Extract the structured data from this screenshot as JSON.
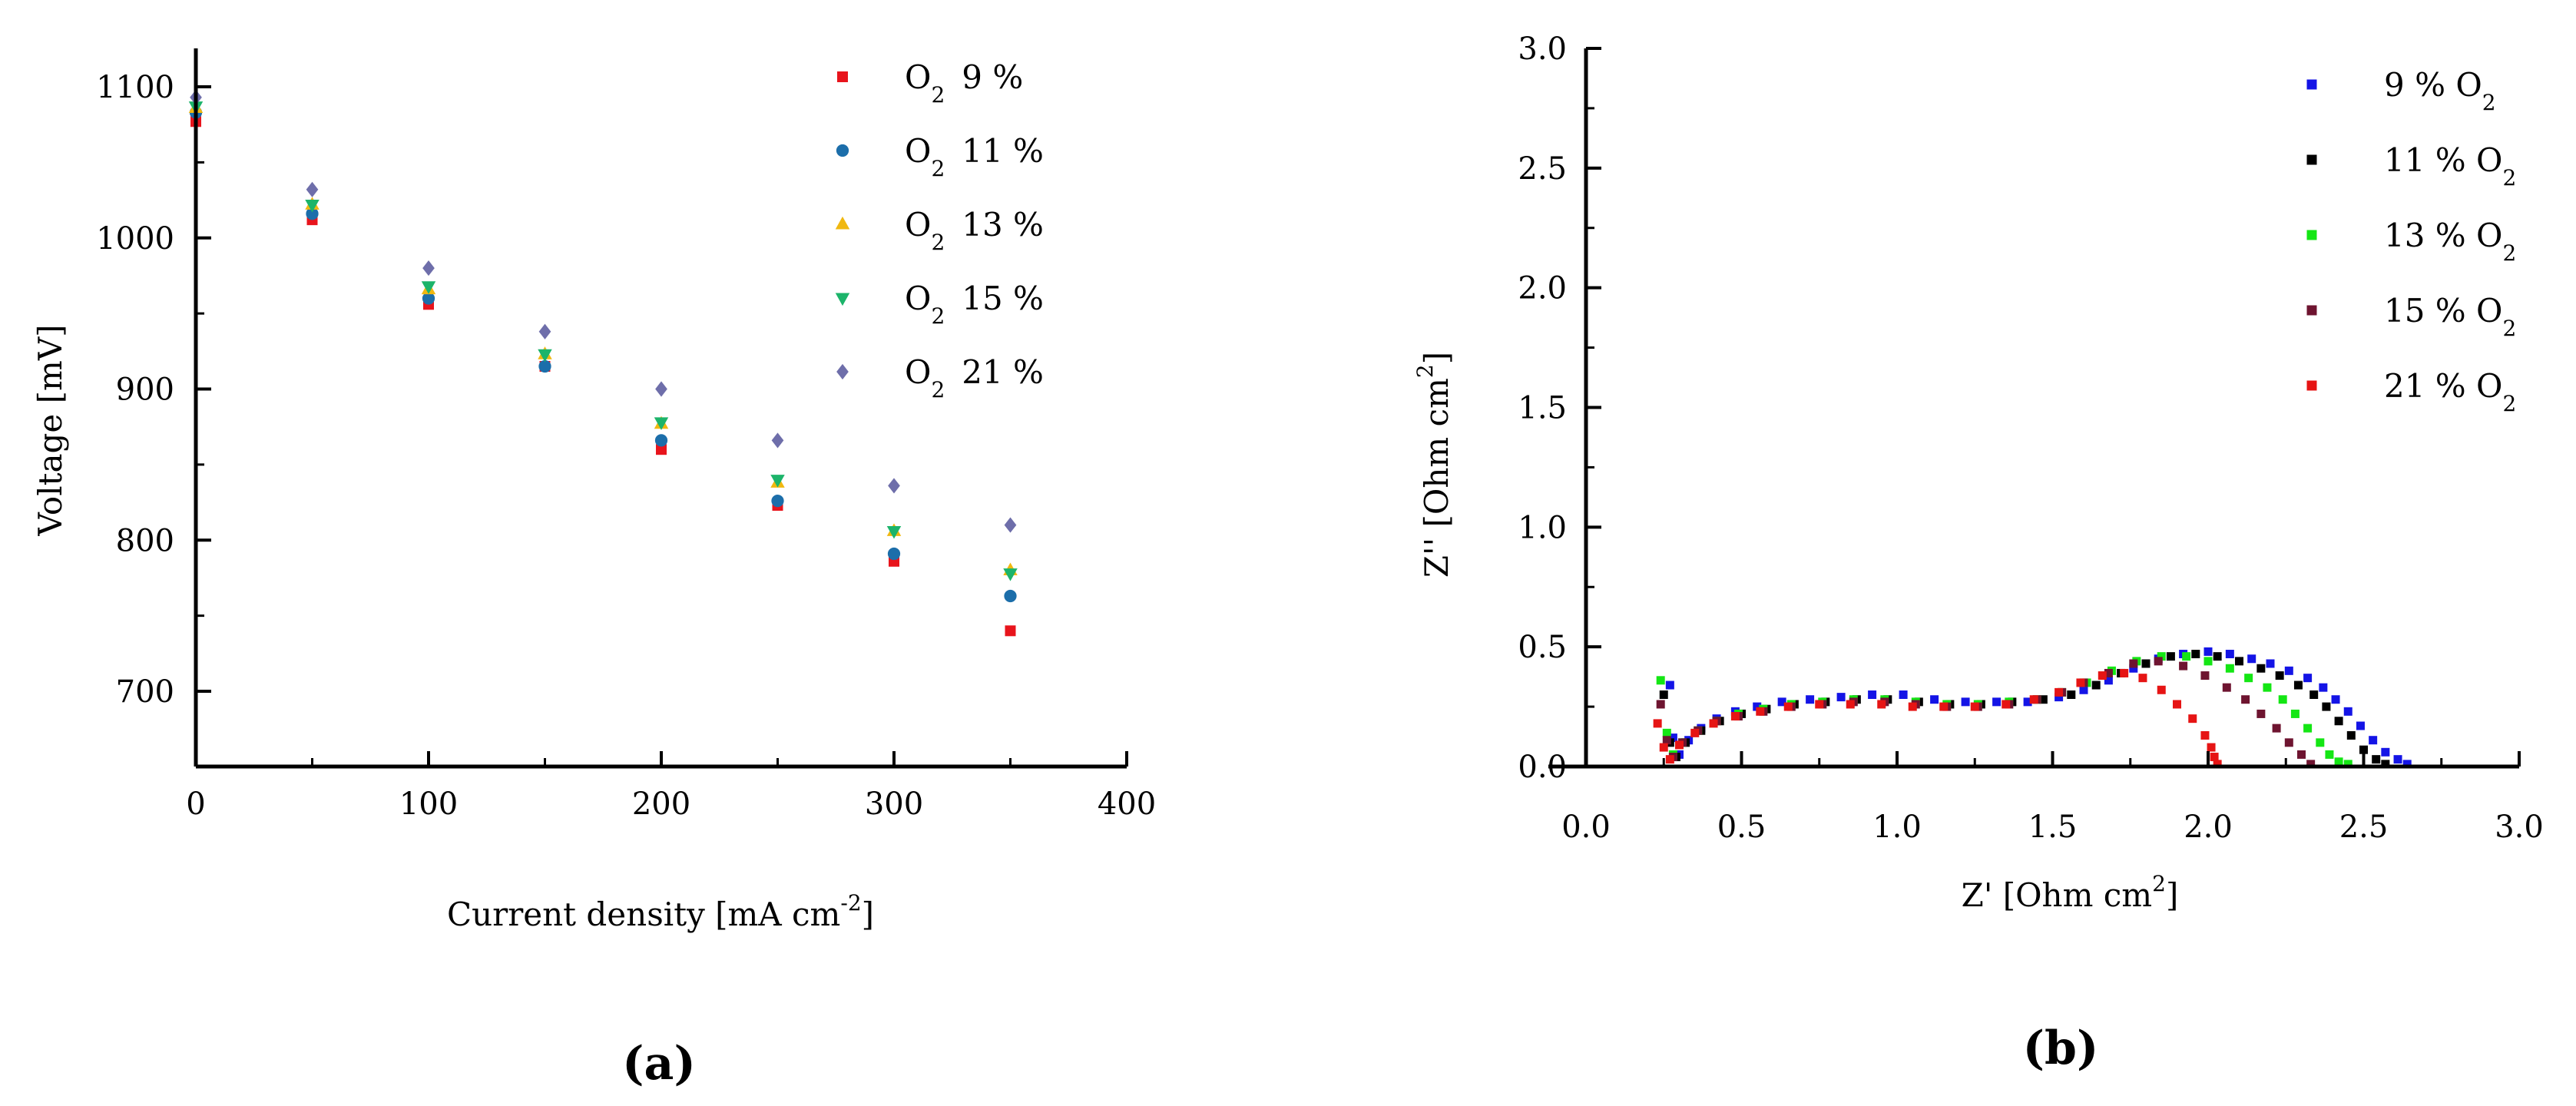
{
  "chart_data": [
    {
      "type": "scatter",
      "panel_label": "(a)",
      "xlabel": "Current density [mA cm",
      "xlabel_sup": "-2",
      "xlabel_close": "]",
      "ylabel": "Voltage [mV]",
      "xlim": [
        0,
        400
      ],
      "ylim": [
        650,
        1125
      ],
      "x_ticks": [
        0,
        100,
        200,
        300,
        400
      ],
      "x_tick_labels": [
        "0",
        "100",
        "200",
        "300",
        "400"
      ],
      "y_ticks": [
        700,
        800,
        900,
        1000,
        1100
      ],
      "y_tick_labels": [
        "700",
        "800",
        "900",
        "1000",
        "1100"
      ],
      "legend_position": "top-right",
      "x": [
        0,
        50,
        100,
        150,
        200,
        250,
        300,
        350
      ],
      "series": [
        {
          "name": "9 %",
          "label_prefix": "O",
          "label_sub": "2",
          "marker": "square",
          "color": "#e8141c",
          "values": [
            1077,
            1012,
            956,
            915,
            860,
            823,
            786,
            740
          ]
        },
        {
          "name": "11 %",
          "label_prefix": "O",
          "label_sub": "2",
          "marker": "circle",
          "color": "#1c6eaa",
          "values": [
            1083,
            1016,
            960,
            915,
            866,
            826,
            791,
            763
          ]
        },
        {
          "name": "13 %",
          "label_prefix": "O",
          "label_sub": "2",
          "marker": "triangle-up",
          "color": "#f0b810",
          "values": [
            1086,
            1022,
            966,
            923,
            877,
            838,
            806,
            780
          ]
        },
        {
          "name": "15 %",
          "label_prefix": "O",
          "label_sub": "2",
          "marker": "triangle-down",
          "color": "#1cb46a",
          "values": [
            1087,
            1022,
            968,
            923,
            878,
            840,
            806,
            778
          ]
        },
        {
          "name": "21 %",
          "label_prefix": "O",
          "label_sub": "2",
          "marker": "diamond",
          "color": "#6e6eaa",
          "values": [
            1093,
            1032,
            980,
            938,
            900,
            866,
            836,
            810
          ]
        }
      ]
    },
    {
      "type": "scatter",
      "panel_label": "(b)",
      "xlabel": "Z' [Ohm cm",
      "xlabel_sup": "2",
      "xlabel_close": "]",
      "ylabel": "Z'' [Ohm cm",
      "ylabel_sup": "2",
      "ylabel_close": "]",
      "xlim": [
        -0.1,
        3.0
      ],
      "ylim": [
        0.0,
        3.0
      ],
      "x_ticks": [
        0.0,
        0.5,
        1.0,
        1.5,
        2.0,
        2.5,
        3.0
      ],
      "x_tick_labels": [
        "0.0",
        "0.5",
        "1.0",
        "1.5",
        "2.0",
        "2.5",
        "3.0"
      ],
      "y_ticks": [
        0.0,
        0.5,
        1.0,
        1.5,
        2.0,
        2.5,
        3.0
      ],
      "y_tick_labels": [
        "0.0",
        "0.5",
        "1.0",
        "1.5",
        "2.0",
        "2.5",
        "3.0"
      ],
      "legend_position": "top-right",
      "series": [
        {
          "name": "9 % O",
          "label_sub": "2",
          "marker": "square",
          "color": "#1414e6",
          "points": [
            [
              0.27,
              0.34
            ],
            [
              0.28,
              0.12
            ],
            [
              0.3,
              0.05
            ],
            [
              0.33,
              0.11
            ],
            [
              0.37,
              0.16
            ],
            [
              0.42,
              0.2
            ],
            [
              0.48,
              0.23
            ],
            [
              0.55,
              0.25
            ],
            [
              0.63,
              0.27
            ],
            [
              0.72,
              0.28
            ],
            [
              0.82,
              0.29
            ],
            [
              0.92,
              0.3
            ],
            [
              1.02,
              0.3
            ],
            [
              1.12,
              0.28
            ],
            [
              1.22,
              0.27
            ],
            [
              1.32,
              0.27
            ],
            [
              1.42,
              0.27
            ],
            [
              1.52,
              0.29
            ],
            [
              1.6,
              0.32
            ],
            [
              1.68,
              0.36
            ],
            [
              1.76,
              0.41
            ],
            [
              1.84,
              0.45
            ],
            [
              1.92,
              0.47
            ],
            [
              2.0,
              0.48
            ],
            [
              2.07,
              0.47
            ],
            [
              2.14,
              0.45
            ],
            [
              2.2,
              0.43
            ],
            [
              2.26,
              0.4
            ],
            [
              2.32,
              0.37
            ],
            [
              2.37,
              0.33
            ],
            [
              2.41,
              0.28
            ],
            [
              2.45,
              0.23
            ],
            [
              2.49,
              0.17
            ],
            [
              2.53,
              0.11
            ],
            [
              2.57,
              0.06
            ],
            [
              2.61,
              0.03
            ],
            [
              2.64,
              0.01
            ]
          ]
        },
        {
          "name": "11 % O",
          "label_sub": "2",
          "marker": "square",
          "color": "#000000",
          "points": [
            [
              0.25,
              0.3
            ],
            [
              0.27,
              0.1
            ],
            [
              0.29,
              0.04
            ],
            [
              0.32,
              0.1
            ],
            [
              0.37,
              0.15
            ],
            [
              0.43,
              0.19
            ],
            [
              0.5,
              0.22
            ],
            [
              0.58,
              0.24
            ],
            [
              0.67,
              0.26
            ],
            [
              0.77,
              0.27
            ],
            [
              0.87,
              0.28
            ],
            [
              0.97,
              0.28
            ],
            [
              1.07,
              0.27
            ],
            [
              1.17,
              0.26
            ],
            [
              1.27,
              0.26
            ],
            [
              1.37,
              0.27
            ],
            [
              1.47,
              0.28
            ],
            [
              1.56,
              0.3
            ],
            [
              1.64,
              0.34
            ],
            [
              1.72,
              0.39
            ],
            [
              1.8,
              0.43
            ],
            [
              1.88,
              0.46
            ],
            [
              1.96,
              0.47
            ],
            [
              2.03,
              0.46
            ],
            [
              2.1,
              0.44
            ],
            [
              2.17,
              0.41
            ],
            [
              2.23,
              0.38
            ],
            [
              2.29,
              0.34
            ],
            [
              2.34,
              0.3
            ],
            [
              2.38,
              0.25
            ],
            [
              2.42,
              0.19
            ],
            [
              2.46,
              0.13
            ],
            [
              2.5,
              0.07
            ],
            [
              2.54,
              0.03
            ],
            [
              2.57,
              0.01
            ]
          ]
        },
        {
          "name": "13 % O",
          "label_sub": "2",
          "marker": "square",
          "color": "#14e614",
          "points": [
            [
              0.24,
              0.36
            ],
            [
              0.26,
              0.14
            ],
            [
              0.28,
              0.05
            ],
            [
              0.31,
              0.1
            ],
            [
              0.36,
              0.15
            ],
            [
              0.42,
              0.19
            ],
            [
              0.49,
              0.22
            ],
            [
              0.57,
              0.24
            ],
            [
              0.66,
              0.26
            ],
            [
              0.76,
              0.27
            ],
            [
              0.86,
              0.28
            ],
            [
              0.96,
              0.28
            ],
            [
              1.06,
              0.27
            ],
            [
              1.16,
              0.26
            ],
            [
              1.26,
              0.26
            ],
            [
              1.36,
              0.27
            ],
            [
              1.45,
              0.28
            ],
            [
              1.53,
              0.31
            ],
            [
              1.61,
              0.35
            ],
            [
              1.69,
              0.4
            ],
            [
              1.77,
              0.44
            ],
            [
              1.85,
              0.46
            ],
            [
              1.93,
              0.46
            ],
            [
              2.0,
              0.44
            ],
            [
              2.07,
              0.41
            ],
            [
              2.13,
              0.37
            ],
            [
              2.19,
              0.33
            ],
            [
              2.24,
              0.28
            ],
            [
              2.28,
              0.22
            ],
            [
              2.32,
              0.16
            ],
            [
              2.36,
              0.1
            ],
            [
              2.39,
              0.05
            ],
            [
              2.42,
              0.02
            ],
            [
              2.45,
              0.01
            ]
          ]
        },
        {
          "name": "15 % O",
          "label_sub": "2",
          "marker": "square",
          "color": "#6e1430",
          "points": [
            [
              0.24,
              0.26
            ],
            [
              0.26,
              0.11
            ],
            [
              0.28,
              0.04
            ],
            [
              0.31,
              0.1
            ],
            [
              0.36,
              0.15
            ],
            [
              0.42,
              0.19
            ],
            [
              0.49,
              0.21
            ],
            [
              0.57,
              0.23
            ],
            [
              0.66,
              0.25
            ],
            [
              0.76,
              0.26
            ],
            [
              0.86,
              0.27
            ],
            [
              0.96,
              0.27
            ],
            [
              1.06,
              0.26
            ],
            [
              1.16,
              0.25
            ],
            [
              1.26,
              0.25
            ],
            [
              1.36,
              0.26
            ],
            [
              1.45,
              0.28
            ],
            [
              1.53,
              0.31
            ],
            [
              1.6,
              0.35
            ],
            [
              1.68,
              0.39
            ],
            [
              1.76,
              0.43
            ],
            [
              1.84,
              0.44
            ],
            [
              1.92,
              0.42
            ],
            [
              1.99,
              0.38
            ],
            [
              2.06,
              0.33
            ],
            [
              2.12,
              0.28
            ],
            [
              2.17,
              0.22
            ],
            [
              2.22,
              0.16
            ],
            [
              2.26,
              0.1
            ],
            [
              2.3,
              0.05
            ],
            [
              2.33,
              0.01
            ]
          ]
        },
        {
          "name": "21 % O",
          "label_sub": "2",
          "marker": "square",
          "color": "#e61414",
          "points": [
            [
              0.23,
              0.18
            ],
            [
              0.25,
              0.08
            ],
            [
              0.27,
              0.03
            ],
            [
              0.3,
              0.09
            ],
            [
              0.35,
              0.14
            ],
            [
              0.41,
              0.18
            ],
            [
              0.48,
              0.21
            ],
            [
              0.56,
              0.23
            ],
            [
              0.65,
              0.25
            ],
            [
              0.75,
              0.26
            ],
            [
              0.85,
              0.26
            ],
            [
              0.95,
              0.26
            ],
            [
              1.05,
              0.25
            ],
            [
              1.15,
              0.25
            ],
            [
              1.25,
              0.25
            ],
            [
              1.35,
              0.26
            ],
            [
              1.44,
              0.28
            ],
            [
              1.52,
              0.31
            ],
            [
              1.59,
              0.35
            ],
            [
              1.66,
              0.38
            ],
            [
              1.73,
              0.39
            ],
            [
              1.79,
              0.37
            ],
            [
              1.85,
              0.32
            ],
            [
              1.9,
              0.26
            ],
            [
              1.95,
              0.2
            ],
            [
              1.99,
              0.13
            ],
            [
              2.01,
              0.08
            ],
            [
              2.02,
              0.04
            ],
            [
              2.03,
              0.01
            ]
          ]
        }
      ]
    }
  ]
}
